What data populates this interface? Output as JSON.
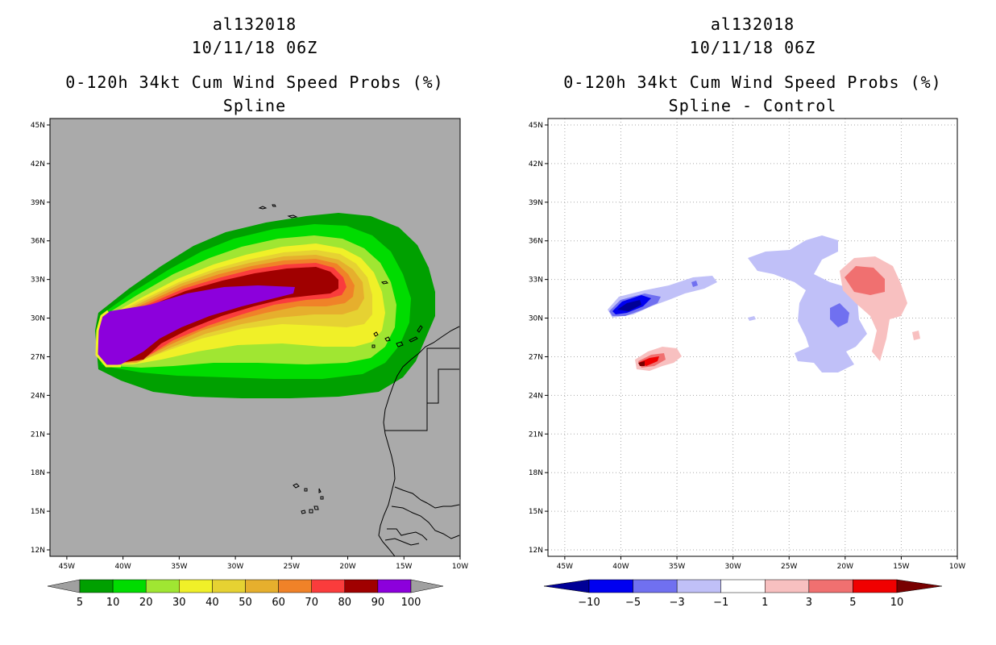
{
  "left": {
    "storm_id": "al132018",
    "datetime": "10/11/18 06Z",
    "product": "0-120h 34kt Cum Wind Speed Probs (%)",
    "subtitle": "Spline"
  },
  "right": {
    "storm_id": "al132018",
    "datetime": "10/11/18 06Z",
    "product": "0-120h 34kt Cum Wind Speed Probs (%)",
    "subtitle": "Spline - Control"
  },
  "chart_data": [
    {
      "type": "heatmap",
      "title": "0-120h 34kt Cum Wind Speed Probs (%) — Spline",
      "x_ticks": [
        "45W",
        "40W",
        "35W",
        "30W",
        "25W",
        "20W",
        "15W",
        "10W"
      ],
      "y_ticks": [
        "45N",
        "42N",
        "39N",
        "36N",
        "33N",
        "30N",
        "27N",
        "24N",
        "21N",
        "18N",
        "15N",
        "12N"
      ],
      "lon_range": [
        -46.5,
        -10
      ],
      "lat_range": [
        11.5,
        45.5
      ],
      "colorbar": {
        "levels": [
          "5",
          "10",
          "20",
          "30",
          "40",
          "50",
          "60",
          "70",
          "80",
          "90",
          "100"
        ],
        "colors": [
          "#00a000",
          "#00dc00",
          "#a0e632",
          "#f0f028",
          "#e6d232",
          "#e6af2d",
          "#f08228",
          "#fa3c3c",
          "#a00000",
          "#8c00dc"
        ],
        "under_color": "#a0a0a0",
        "over_color": "#a0a0a0"
      },
      "background": "#aaaaaa"
    },
    {
      "type": "heatmap",
      "title": "0-120h 34kt Cum Wind Speed Probs (%) — Spline - Control",
      "x_ticks": [
        "45W",
        "40W",
        "35W",
        "30W",
        "25W",
        "20W",
        "15W",
        "10W"
      ],
      "y_ticks": [
        "45N",
        "42N",
        "39N",
        "36N",
        "33N",
        "30N",
        "27N",
        "24N",
        "21N",
        "18N",
        "15N",
        "12N"
      ],
      "lon_range": [
        -46.5,
        -10
      ],
      "lat_range": [
        11.5,
        45.5
      ],
      "colorbar": {
        "levels": [
          "-10",
          "-5",
          "-3",
          "-1",
          "1",
          "3",
          "5",
          "10"
        ],
        "colors": [
          "#0000f0",
          "#7070f0",
          "#c0c0f8",
          "#ffffff",
          "#f8c0c0",
          "#f07070",
          "#f00000"
        ],
        "under_color": "#000096",
        "over_color": "#780000"
      },
      "background": "#ffffff"
    }
  ]
}
